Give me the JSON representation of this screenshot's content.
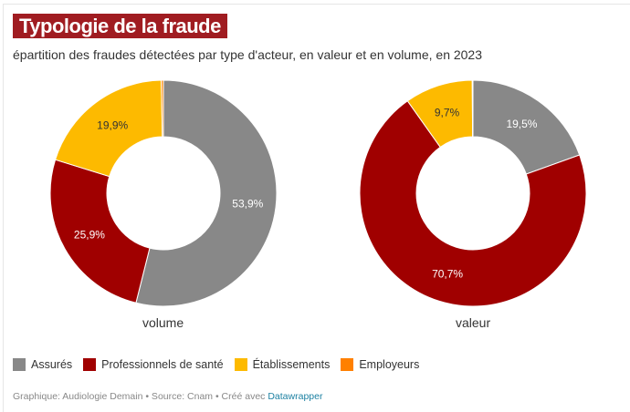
{
  "title": "Typologie de la fraude",
  "subtitle": "épartition des fraudes détectées par type d'acteur, en valeur et en volume, en 2023",
  "chart_data": [
    {
      "type": "pie",
      "donut": true,
      "label": "volume",
      "categories": [
        "Assurés",
        "Professionnels de santé",
        "Établissements",
        "Employeurs"
      ],
      "values": [
        53.9,
        25.9,
        19.9,
        0.3
      ],
      "data_labels": [
        "53,9%",
        "25,9%",
        "19,9%",
        ""
      ]
    },
    {
      "type": "pie",
      "donut": true,
      "label": "valeur",
      "categories": [
        "Assurés",
        "Professionnels de santé",
        "Établissements",
        "Employeurs"
      ],
      "values": [
        19.5,
        70.7,
        9.7,
        0.1
      ],
      "data_labels": [
        "19,5%",
        "70,7%",
        "9,7%",
        ""
      ]
    }
  ],
  "legend": [
    {
      "label": "Assurés",
      "color": "#888888"
    },
    {
      "label": "Professionnels de santé",
      "color": "#a00000"
    },
    {
      "label": "Établissements",
      "color": "#fdba00"
    },
    {
      "label": "Employeurs",
      "color": "#ff8000"
    }
  ],
  "footer": {
    "text": "Graphique: Audiologie Demain • Source: Cnam • Créé avec ",
    "link": "Datawrapper"
  }
}
